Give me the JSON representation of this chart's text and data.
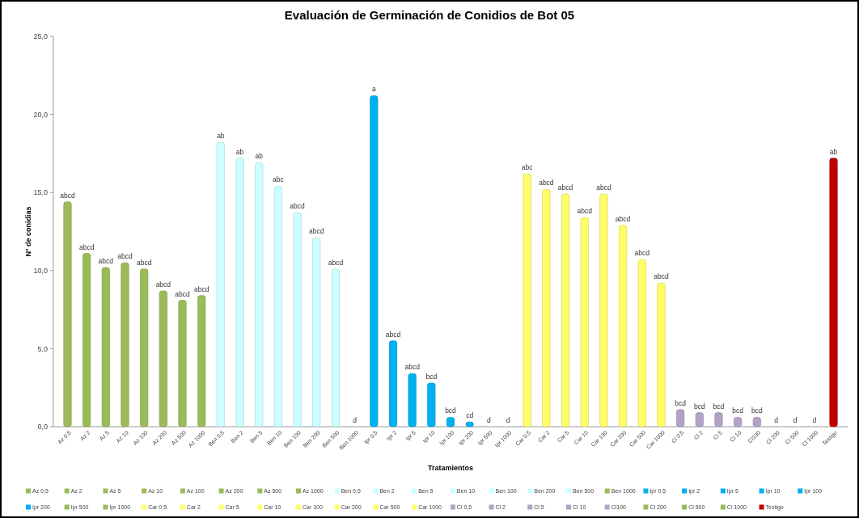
{
  "chart_data": {
    "type": "bar",
    "title": "Evaluación de Germinación de Conidios de Bot 05",
    "xlabel": "Tratamientos",
    "ylabel": "N° de conidias",
    "categories": [
      "Az 0,5",
      "Az 2",
      "Az 5",
      "Az 10",
      "Az 100",
      "Az 200",
      "Az 500",
      "Az 1000",
      "Ben 0,5",
      "Ben 2",
      "Ben 5",
      "Ben 10",
      "Ben 100",
      "Ben 200",
      "Ben 500",
      "Ben 1000",
      "Ipr 0,5",
      "Ipr 2",
      "Ipr 5",
      "Ipr 10",
      "Ipr 100",
      "Ipr 200",
      "Ipr 500",
      "Ipr 1000",
      "Car 0,5",
      "Car 2",
      "Car 5",
      "Car 10",
      "Car 100",
      "Car 200",
      "Car 500",
      "Car 1000",
      "Cl 0,5",
      "Cl 2",
      "Cl 5",
      "Cl 10",
      "Cl100",
      "Cl 200",
      "Cl 500",
      "Cl 1000",
      "Testigo"
    ],
    "series": [
      {
        "name": "Az 0,5",
        "color": "#9bbb59",
        "values": [
          14.4,
          null,
          null,
          null,
          null,
          null,
          null,
          null,
          null,
          null,
          null,
          null,
          null,
          null,
          null,
          null,
          null,
          null,
          null,
          null,
          null,
          null,
          null,
          null,
          null,
          null,
          null,
          null,
          null,
          null,
          null,
          null,
          null,
          null,
          null,
          null,
          null,
          null,
          null,
          null,
          null
        ]
      },
      {
        "name": "Az 2",
        "color": "#9bbb59",
        "values": [
          null,
          11.1,
          null,
          null,
          null,
          null,
          null,
          null,
          null,
          null,
          null,
          null,
          null,
          null,
          null,
          null,
          null,
          null,
          null,
          null,
          null,
          null,
          null,
          null,
          null,
          null,
          null,
          null,
          null,
          null,
          null,
          null,
          null,
          null,
          null,
          null,
          null,
          null,
          null,
          null,
          null
        ]
      },
      {
        "name": "Az 5",
        "color": "#9bbb59",
        "values": [
          null,
          null,
          10.2,
          null,
          null,
          null,
          null,
          null,
          null,
          null,
          null,
          null,
          null,
          null,
          null,
          null,
          null,
          null,
          null,
          null,
          null,
          null,
          null,
          null,
          null,
          null,
          null,
          null,
          null,
          null,
          null,
          null,
          null,
          null,
          null,
          null,
          null,
          null,
          null,
          null,
          null
        ]
      },
      {
        "name": "Az 10",
        "color": "#9bbb59",
        "values": [
          null,
          null,
          null,
          10.5,
          null,
          null,
          null,
          null,
          null,
          null,
          null,
          null,
          null,
          null,
          null,
          null,
          null,
          null,
          null,
          null,
          null,
          null,
          null,
          null,
          null,
          null,
          null,
          null,
          null,
          null,
          null,
          null,
          null,
          null,
          null,
          null,
          null,
          null,
          null,
          null,
          null
        ]
      },
      {
        "name": "Az 100",
        "color": "#9bbb59",
        "values": [
          null,
          null,
          null,
          null,
          10.1,
          null,
          null,
          null,
          null,
          null,
          null,
          null,
          null,
          null,
          null,
          null,
          null,
          null,
          null,
          null,
          null,
          null,
          null,
          null,
          null,
          null,
          null,
          null,
          null,
          null,
          null,
          null,
          null,
          null,
          null,
          null,
          null,
          null,
          null,
          null,
          null
        ]
      },
      {
        "name": "Az 200",
        "color": "#9bbb59",
        "values": [
          null,
          null,
          null,
          null,
          null,
          8.7,
          null,
          null,
          null,
          null,
          null,
          null,
          null,
          null,
          null,
          null,
          null,
          null,
          null,
          null,
          null,
          null,
          null,
          null,
          null,
          null,
          null,
          null,
          null,
          null,
          null,
          null,
          null,
          null,
          null,
          null,
          null,
          null,
          null,
          null,
          null
        ]
      },
      {
        "name": "Az 500",
        "color": "#9bbb59",
        "values": [
          null,
          null,
          null,
          null,
          null,
          null,
          8.1,
          null,
          null,
          null,
          null,
          null,
          null,
          null,
          null,
          null,
          null,
          null,
          null,
          null,
          null,
          null,
          null,
          null,
          null,
          null,
          null,
          null,
          null,
          null,
          null,
          null,
          null,
          null,
          null,
          null,
          null,
          null,
          null,
          null,
          null
        ]
      },
      {
        "name": "Az 1000",
        "color": "#9bbb59",
        "values": [
          null,
          null,
          null,
          null,
          null,
          null,
          null,
          8.4,
          null,
          null,
          null,
          null,
          null,
          null,
          null,
          null,
          null,
          null,
          null,
          null,
          null,
          null,
          null,
          null,
          null,
          null,
          null,
          null,
          null,
          null,
          null,
          null,
          null,
          null,
          null,
          null,
          null,
          null,
          null,
          null,
          null
        ]
      },
      {
        "name": "Ben 0,5",
        "color": "#ccffff",
        "values": [
          null,
          null,
          null,
          null,
          null,
          null,
          null,
          null,
          18.2,
          null,
          null,
          null,
          null,
          null,
          null,
          null,
          null,
          null,
          null,
          null,
          null,
          null,
          null,
          null,
          null,
          null,
          null,
          null,
          null,
          null,
          null,
          null,
          null,
          null,
          null,
          null,
          null,
          null,
          null,
          null,
          null
        ]
      },
      {
        "name": "Ben 2",
        "color": "#ccffff",
        "values": [
          null,
          null,
          null,
          null,
          null,
          null,
          null,
          null,
          null,
          17.2,
          null,
          null,
          null,
          null,
          null,
          null,
          null,
          null,
          null,
          null,
          null,
          null,
          null,
          null,
          null,
          null,
          null,
          null,
          null,
          null,
          null,
          null,
          null,
          null,
          null,
          null,
          null,
          null,
          null,
          null,
          null
        ]
      },
      {
        "name": "Ben 5",
        "color": "#ccffff",
        "values": [
          null,
          null,
          null,
          null,
          null,
          null,
          null,
          null,
          null,
          null,
          16.9,
          null,
          null,
          null,
          null,
          null,
          null,
          null,
          null,
          null,
          null,
          null,
          null,
          null,
          null,
          null,
          null,
          null,
          null,
          null,
          null,
          null,
          null,
          null,
          null,
          null,
          null,
          null,
          null,
          null,
          null
        ]
      },
      {
        "name": "Ben 10",
        "color": "#ccffff",
        "values": [
          null,
          null,
          null,
          null,
          null,
          null,
          null,
          null,
          null,
          null,
          null,
          15.4,
          null,
          null,
          null,
          null,
          null,
          null,
          null,
          null,
          null,
          null,
          null,
          null,
          null,
          null,
          null,
          null,
          null,
          null,
          null,
          null,
          null,
          null,
          null,
          null,
          null,
          null,
          null,
          null,
          null
        ]
      },
      {
        "name": "Ben 100",
        "color": "#ccffff",
        "values": [
          null,
          null,
          null,
          null,
          null,
          null,
          null,
          null,
          null,
          null,
          null,
          null,
          13.7,
          null,
          null,
          null,
          null,
          null,
          null,
          null,
          null,
          null,
          null,
          null,
          null,
          null,
          null,
          null,
          null,
          null,
          null,
          null,
          null,
          null,
          null,
          null,
          null,
          null,
          null,
          null,
          null
        ]
      },
      {
        "name": "Ben 200",
        "color": "#ccffff",
        "values": [
          null,
          null,
          null,
          null,
          null,
          null,
          null,
          null,
          null,
          null,
          null,
          null,
          null,
          12.1,
          null,
          null,
          null,
          null,
          null,
          null,
          null,
          null,
          null,
          null,
          null,
          null,
          null,
          null,
          null,
          null,
          null,
          null,
          null,
          null,
          null,
          null,
          null,
          null,
          null,
          null,
          null
        ]
      },
      {
        "name": "Ben 500",
        "color": "#ccffff",
        "values": [
          null,
          null,
          null,
          null,
          null,
          null,
          null,
          null,
          null,
          null,
          null,
          null,
          null,
          null,
          10.1,
          null,
          null,
          null,
          null,
          null,
          null,
          null,
          null,
          null,
          null,
          null,
          null,
          null,
          null,
          null,
          null,
          null,
          null,
          null,
          null,
          null,
          null,
          null,
          null,
          null,
          null
        ]
      },
      {
        "name": "Ben 1000",
        "color": "#9bbb59",
        "values": [
          null,
          null,
          null,
          null,
          null,
          null,
          null,
          null,
          null,
          null,
          null,
          null,
          null,
          null,
          null,
          0,
          null,
          null,
          null,
          null,
          null,
          null,
          null,
          null,
          null,
          null,
          null,
          null,
          null,
          null,
          null,
          null,
          null,
          null,
          null,
          null,
          null,
          null,
          null,
          null,
          null
        ]
      },
      {
        "name": "Ipr 0,5",
        "color": "#00b0f0",
        "values": [
          null,
          null,
          null,
          null,
          null,
          null,
          null,
          null,
          null,
          null,
          null,
          null,
          null,
          null,
          null,
          null,
          21.2,
          null,
          null,
          null,
          null,
          null,
          null,
          null,
          null,
          null,
          null,
          null,
          null,
          null,
          null,
          null,
          null,
          null,
          null,
          null,
          null,
          null,
          null,
          null,
          null
        ]
      },
      {
        "name": "Ipr 2",
        "color": "#00b0f0",
        "values": [
          null,
          null,
          null,
          null,
          null,
          null,
          null,
          null,
          null,
          null,
          null,
          null,
          null,
          null,
          null,
          null,
          null,
          5.5,
          null,
          null,
          null,
          null,
          null,
          null,
          null,
          null,
          null,
          null,
          null,
          null,
          null,
          null,
          null,
          null,
          null,
          null,
          null,
          null,
          null,
          null,
          null
        ]
      },
      {
        "name": "Ipr 5",
        "color": "#00b0f0",
        "values": [
          null,
          null,
          null,
          null,
          null,
          null,
          null,
          null,
          null,
          null,
          null,
          null,
          null,
          null,
          null,
          null,
          null,
          null,
          3.4,
          null,
          null,
          null,
          null,
          null,
          null,
          null,
          null,
          null,
          null,
          null,
          null,
          null,
          null,
          null,
          null,
          null,
          null,
          null,
          null,
          null,
          null
        ]
      },
      {
        "name": "Ipr 10",
        "color": "#00b0f0",
        "values": [
          null,
          null,
          null,
          null,
          null,
          null,
          null,
          null,
          null,
          null,
          null,
          null,
          null,
          null,
          null,
          null,
          null,
          null,
          null,
          2.8,
          null,
          null,
          null,
          null,
          null,
          null,
          null,
          null,
          null,
          null,
          null,
          null,
          null,
          null,
          null,
          null,
          null,
          null,
          null,
          null,
          null
        ]
      },
      {
        "name": "Ipr 100",
        "color": "#00b0f0",
        "values": [
          null,
          null,
          null,
          null,
          null,
          null,
          null,
          null,
          null,
          null,
          null,
          null,
          null,
          null,
          null,
          null,
          null,
          null,
          null,
          null,
          0.6,
          null,
          null,
          null,
          null,
          null,
          null,
          null,
          null,
          null,
          null,
          null,
          null,
          null,
          null,
          null,
          null,
          null,
          null,
          null,
          null
        ]
      },
      {
        "name": "Ipr 200",
        "color": "#00b0f0",
        "values": [
          null,
          null,
          null,
          null,
          null,
          null,
          null,
          null,
          null,
          null,
          null,
          null,
          null,
          null,
          null,
          null,
          null,
          null,
          null,
          null,
          null,
          0.3,
          null,
          null,
          null,
          null,
          null,
          null,
          null,
          null,
          null,
          null,
          null,
          null,
          null,
          null,
          null,
          null,
          null,
          null,
          null
        ]
      },
      {
        "name": "Ipr 500",
        "color": "#9bbb59",
        "values": [
          null,
          null,
          null,
          null,
          null,
          null,
          null,
          null,
          null,
          null,
          null,
          null,
          null,
          null,
          null,
          null,
          null,
          null,
          null,
          null,
          null,
          null,
          0,
          null,
          null,
          null,
          null,
          null,
          null,
          null,
          null,
          null,
          null,
          null,
          null,
          null,
          null,
          null,
          null,
          null,
          null
        ]
      },
      {
        "name": "Ipr 1000",
        "color": "#9bbb59",
        "values": [
          null,
          null,
          null,
          null,
          null,
          null,
          null,
          null,
          null,
          null,
          null,
          null,
          null,
          null,
          null,
          null,
          null,
          null,
          null,
          null,
          null,
          null,
          null,
          0,
          null,
          null,
          null,
          null,
          null,
          null,
          null,
          null,
          null,
          null,
          null,
          null,
          null,
          null,
          null,
          null,
          null
        ]
      },
      {
        "name": "Car 0,5",
        "color": "#ffff66",
        "values": [
          null,
          null,
          null,
          null,
          null,
          null,
          null,
          null,
          null,
          null,
          null,
          null,
          null,
          null,
          null,
          null,
          null,
          null,
          null,
          null,
          null,
          null,
          null,
          null,
          16.2,
          null,
          null,
          null,
          null,
          null,
          null,
          null,
          null,
          null,
          null,
          null,
          null,
          null,
          null,
          null,
          null
        ]
      },
      {
        "name": "Car 2",
        "color": "#ffff66",
        "values": [
          null,
          null,
          null,
          null,
          null,
          null,
          null,
          null,
          null,
          null,
          null,
          null,
          null,
          null,
          null,
          null,
          null,
          null,
          null,
          null,
          null,
          null,
          null,
          null,
          null,
          15.2,
          null,
          null,
          null,
          null,
          null,
          null,
          null,
          null,
          null,
          null,
          null,
          null,
          null,
          null,
          null
        ]
      },
      {
        "name": "Car 5",
        "color": "#ffff66",
        "values": [
          null,
          null,
          null,
          null,
          null,
          null,
          null,
          null,
          null,
          null,
          null,
          null,
          null,
          null,
          null,
          null,
          null,
          null,
          null,
          null,
          null,
          null,
          null,
          null,
          null,
          null,
          14.9,
          null,
          null,
          null,
          null,
          null,
          null,
          null,
          null,
          null,
          null,
          null,
          null,
          null,
          null
        ]
      },
      {
        "name": "Car 10",
        "color": "#ffff66",
        "values": [
          null,
          null,
          null,
          null,
          null,
          null,
          null,
          null,
          null,
          null,
          null,
          null,
          null,
          null,
          null,
          null,
          null,
          null,
          null,
          null,
          null,
          null,
          null,
          null,
          null,
          null,
          null,
          13.4,
          null,
          null,
          null,
          null,
          null,
          null,
          null,
          null,
          null,
          null,
          null,
          null,
          null
        ]
      },
      {
        "name": "Car 100",
        "color": "#ffff66",
        "values": [
          null,
          null,
          null,
          null,
          null,
          null,
          null,
          null,
          null,
          null,
          null,
          null,
          null,
          null,
          null,
          null,
          null,
          null,
          null,
          null,
          null,
          null,
          null,
          null,
          null,
          null,
          null,
          null,
          14.9,
          null,
          null,
          null,
          null,
          null,
          null,
          null,
          null,
          null,
          null,
          null,
          null
        ]
      },
      {
        "name": "Car 200",
        "color": "#ffff66",
        "values": [
          null,
          null,
          null,
          null,
          null,
          null,
          null,
          null,
          null,
          null,
          null,
          null,
          null,
          null,
          null,
          null,
          null,
          null,
          null,
          null,
          null,
          null,
          null,
          null,
          null,
          null,
          null,
          null,
          null,
          12.9,
          null,
          null,
          null,
          null,
          null,
          null,
          null,
          null,
          null,
          null,
          null
        ]
      },
      {
        "name": "Car 500",
        "color": "#ffff66",
        "values": [
          null,
          null,
          null,
          null,
          null,
          null,
          null,
          null,
          null,
          null,
          null,
          null,
          null,
          null,
          null,
          null,
          null,
          null,
          null,
          null,
          null,
          null,
          null,
          null,
          null,
          null,
          null,
          null,
          null,
          null,
          10.7,
          null,
          null,
          null,
          null,
          null,
          null,
          null,
          null,
          null,
          null
        ]
      },
      {
        "name": "Car 1000",
        "color": "#ffff66",
        "values": [
          null,
          null,
          null,
          null,
          null,
          null,
          null,
          null,
          null,
          null,
          null,
          null,
          null,
          null,
          null,
          null,
          null,
          null,
          null,
          null,
          null,
          null,
          null,
          null,
          null,
          null,
          null,
          null,
          null,
          null,
          null,
          9.2,
          null,
          null,
          null,
          null,
          null,
          null,
          null,
          null,
          null
        ]
      },
      {
        "name": "Cl 0,5",
        "color": "#b3a2c7",
        "values": [
          null,
          null,
          null,
          null,
          null,
          null,
          null,
          null,
          null,
          null,
          null,
          null,
          null,
          null,
          null,
          null,
          null,
          null,
          null,
          null,
          null,
          null,
          null,
          null,
          null,
          null,
          null,
          null,
          null,
          null,
          null,
          null,
          1.1,
          null,
          null,
          null,
          null,
          null,
          null,
          null,
          null
        ]
      },
      {
        "name": "Cl 2",
        "color": "#b3a2c7",
        "values": [
          null,
          null,
          null,
          null,
          null,
          null,
          null,
          null,
          null,
          null,
          null,
          null,
          null,
          null,
          null,
          null,
          null,
          null,
          null,
          null,
          null,
          null,
          null,
          null,
          null,
          null,
          null,
          null,
          null,
          null,
          null,
          null,
          null,
          0.9,
          null,
          null,
          null,
          null,
          null,
          null,
          null
        ]
      },
      {
        "name": "Cl 5",
        "color": "#b3a2c7",
        "values": [
          null,
          null,
          null,
          null,
          null,
          null,
          null,
          null,
          null,
          null,
          null,
          null,
          null,
          null,
          null,
          null,
          null,
          null,
          null,
          null,
          null,
          null,
          null,
          null,
          null,
          null,
          null,
          null,
          null,
          null,
          null,
          null,
          null,
          null,
          0.9,
          null,
          null,
          null,
          null,
          null,
          null
        ]
      },
      {
        "name": "Cl 10",
        "color": "#b3a2c7",
        "values": [
          null,
          null,
          null,
          null,
          null,
          null,
          null,
          null,
          null,
          null,
          null,
          null,
          null,
          null,
          null,
          null,
          null,
          null,
          null,
          null,
          null,
          null,
          null,
          null,
          null,
          null,
          null,
          null,
          null,
          null,
          null,
          null,
          null,
          null,
          null,
          0.6,
          null,
          null,
          null,
          null,
          null
        ]
      },
      {
        "name": "Cl100",
        "color": "#b3a2c7",
        "values": [
          null,
          null,
          null,
          null,
          null,
          null,
          null,
          null,
          null,
          null,
          null,
          null,
          null,
          null,
          null,
          null,
          null,
          null,
          null,
          null,
          null,
          null,
          null,
          null,
          null,
          null,
          null,
          null,
          null,
          null,
          null,
          null,
          null,
          null,
          null,
          null,
          0.6,
          null,
          null,
          null,
          null
        ]
      },
      {
        "name": "Cl 200",
        "color": "#9bbb59",
        "values": [
          null,
          null,
          null,
          null,
          null,
          null,
          null,
          null,
          null,
          null,
          null,
          null,
          null,
          null,
          null,
          null,
          null,
          null,
          null,
          null,
          null,
          null,
          null,
          null,
          null,
          null,
          null,
          null,
          null,
          null,
          null,
          null,
          null,
          null,
          null,
          null,
          null,
          0,
          null,
          null,
          null
        ]
      },
      {
        "name": "Cl 500",
        "color": "#9bbb59",
        "values": [
          null,
          null,
          null,
          null,
          null,
          null,
          null,
          null,
          null,
          null,
          null,
          null,
          null,
          null,
          null,
          null,
          null,
          null,
          null,
          null,
          null,
          null,
          null,
          null,
          null,
          null,
          null,
          null,
          null,
          null,
          null,
          null,
          null,
          null,
          null,
          null,
          null,
          null,
          0,
          null,
          null
        ]
      },
      {
        "name": "Cl 1000",
        "color": "#9bbb59",
        "values": [
          null,
          null,
          null,
          null,
          null,
          null,
          null,
          null,
          null,
          null,
          null,
          null,
          null,
          null,
          null,
          null,
          null,
          null,
          null,
          null,
          null,
          null,
          null,
          null,
          null,
          null,
          null,
          null,
          null,
          null,
          null,
          null,
          null,
          null,
          null,
          null,
          null,
          null,
          null,
          0,
          null
        ]
      },
      {
        "name": "Testigo",
        "color": "#c00000",
        "values": [
          null,
          null,
          null,
          null,
          null,
          null,
          null,
          null,
          null,
          null,
          null,
          null,
          null,
          null,
          null,
          null,
          null,
          null,
          null,
          null,
          null,
          null,
          null,
          null,
          null,
          null,
          null,
          null,
          null,
          null,
          null,
          null,
          null,
          null,
          null,
          null,
          null,
          null,
          null,
          null,
          17.2
        ]
      }
    ],
    "ylim": [
      0,
      25
    ],
    "yticks": [
      {
        "value": 0,
        "label": "0,0"
      },
      {
        "value": 5,
        "label": "5,0"
      },
      {
        "value": 10,
        "label": "10,0"
      },
      {
        "value": 15,
        "label": "15,0"
      },
      {
        "value": 20,
        "label": "20,0"
      },
      {
        "value": 25,
        "label": "25,0"
      }
    ],
    "legend": "bottom",
    "annotations": [
      {
        "text": "abcd",
        "x": "Az 0,5",
        "y": 14.4
      },
      {
        "text": "abcd",
        "x": "Az 2",
        "y": 11.1
      },
      {
        "text": "abcd",
        "x": "Az 5",
        "y": 10.2
      },
      {
        "text": "abcd",
        "x": "Az 10",
        "y": 10.5
      },
      {
        "text": "abcd",
        "x": "Az 100",
        "y": 10.1
      },
      {
        "text": "abcd",
        "x": "Az 200",
        "y": 8.7
      },
      {
        "text": "abcd",
        "x": "Az 500",
        "y": 8.1
      },
      {
        "text": "abcd",
        "x": "Az 1000",
        "y": 8.4
      },
      {
        "text": "ab",
        "x": "Ben 0,5",
        "y": 18.2
      },
      {
        "text": "ab",
        "x": "Ben 2",
        "y": 17.2
      },
      {
        "text": "ab",
        "x": "Ben 5",
        "y": 16.9
      },
      {
        "text": "abc",
        "x": "Ben 10",
        "y": 15.4
      },
      {
        "text": "abcd",
        "x": "Ben 100",
        "y": 13.7
      },
      {
        "text": "abcd",
        "x": "Ben 200",
        "y": 12.1
      },
      {
        "text": "abcd",
        "x": "Ben 500",
        "y": 10.1
      },
      {
        "text": "d",
        "x": "Ben 1000",
        "y": 0
      },
      {
        "text": "a",
        "x": "Ipr 0,5",
        "y": 21.2
      },
      {
        "text": "abcd",
        "x": "Ipr 2",
        "y": 5.5
      },
      {
        "text": "abcd",
        "x": "Ipr 5",
        "y": 3.4
      },
      {
        "text": "bcd",
        "x": "Ipr 10",
        "y": 2.8
      },
      {
        "text": "bcd",
        "x": "Ipr 100",
        "y": 0.6
      },
      {
        "text": "cd",
        "x": "Ipr 200",
        "y": 0.3
      },
      {
        "text": "d",
        "x": "Ipr 500",
        "y": 0
      },
      {
        "text": "d",
        "x": "Ipr 1000",
        "y": 0
      },
      {
        "text": "abc",
        "x": "Car 0,5",
        "y": 16.2
      },
      {
        "text": "abcd",
        "x": "Car 2",
        "y": 15.2
      },
      {
        "text": "abcd",
        "x": "Car 5",
        "y": 14.9
      },
      {
        "text": "abcd",
        "x": "Car 10",
        "y": 13.4
      },
      {
        "text": "abcd",
        "x": "Car 100",
        "y": 14.9
      },
      {
        "text": "abcd",
        "x": "Car 200",
        "y": 12.9
      },
      {
        "text": "abcd",
        "x": "Car 500",
        "y": 10.7
      },
      {
        "text": "abcd",
        "x": "Car 1000",
        "y": 9.2
      },
      {
        "text": "bcd",
        "x": "Cl 0,5",
        "y": 1.1
      },
      {
        "text": "bcd",
        "x": "Cl 2",
        "y": 0.9
      },
      {
        "text": "bcd",
        "x": "Cl 5",
        "y": 0.9
      },
      {
        "text": "bcd",
        "x": "Cl 10",
        "y": 0.6
      },
      {
        "text": "bcd",
        "x": "Cl100",
        "y": 0.6
      },
      {
        "text": "d",
        "x": "Cl 200",
        "y": 0
      },
      {
        "text": "d",
        "x": "Cl 500",
        "y": 0
      },
      {
        "text": "d",
        "x": "Cl 1000",
        "y": 0
      },
      {
        "text": "ab",
        "x": "Testigo",
        "y": 17.2
      }
    ]
  }
}
